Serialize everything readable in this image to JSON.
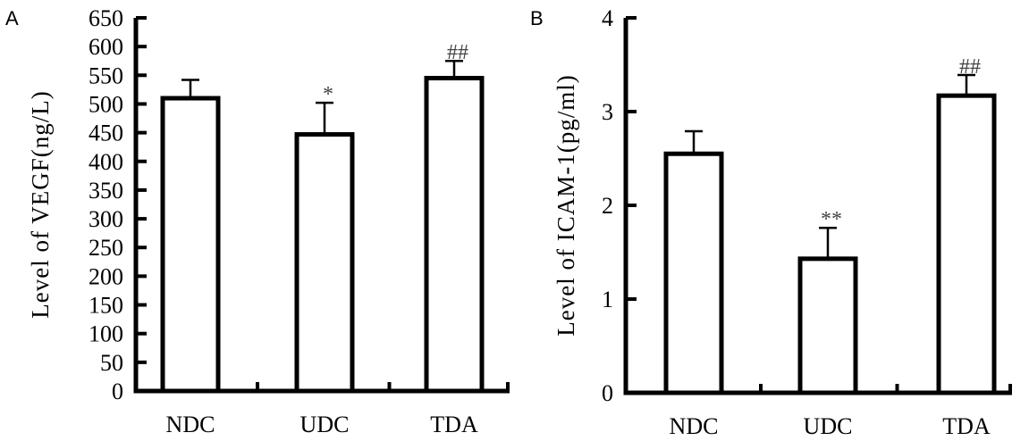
{
  "chart_data": [
    {
      "panel": "A",
      "type": "bar",
      "categories": [
        "NDC",
        "UDC",
        "TDA"
      ],
      "values": [
        510,
        447,
        545
      ],
      "errors": [
        32,
        55,
        30
      ],
      "annotations": [
        "",
        "*",
        "##"
      ],
      "ylabel": "Level of VEGF(ng/L)",
      "ylim": [
        0,
        650
      ],
      "yticks": [
        "0",
        "50",
        "100",
        "150",
        "200",
        "250",
        "300",
        "350",
        "400",
        "450",
        "500",
        "550",
        "600",
        "650"
      ],
      "xlabel": "",
      "title": ""
    },
    {
      "panel": "B",
      "type": "bar",
      "categories": [
        "NDC",
        "UDC",
        "TDA"
      ],
      "values": [
        2.55,
        1.43,
        3.17
      ],
      "errors": [
        0.24,
        0.33,
        0.22
      ],
      "annotations": [
        "",
        "**",
        "##"
      ],
      "ylabel": "Level of ICAM-1(pg/ml)",
      "ylim": [
        0,
        4
      ],
      "yticks": [
        "0",
        "1",
        "2",
        "3",
        "4"
      ],
      "xlabel": "",
      "title": ""
    }
  ],
  "colors": {
    "bar_fill": "#ffffff",
    "stroke": "#000000",
    "annotation": "#444444"
  }
}
